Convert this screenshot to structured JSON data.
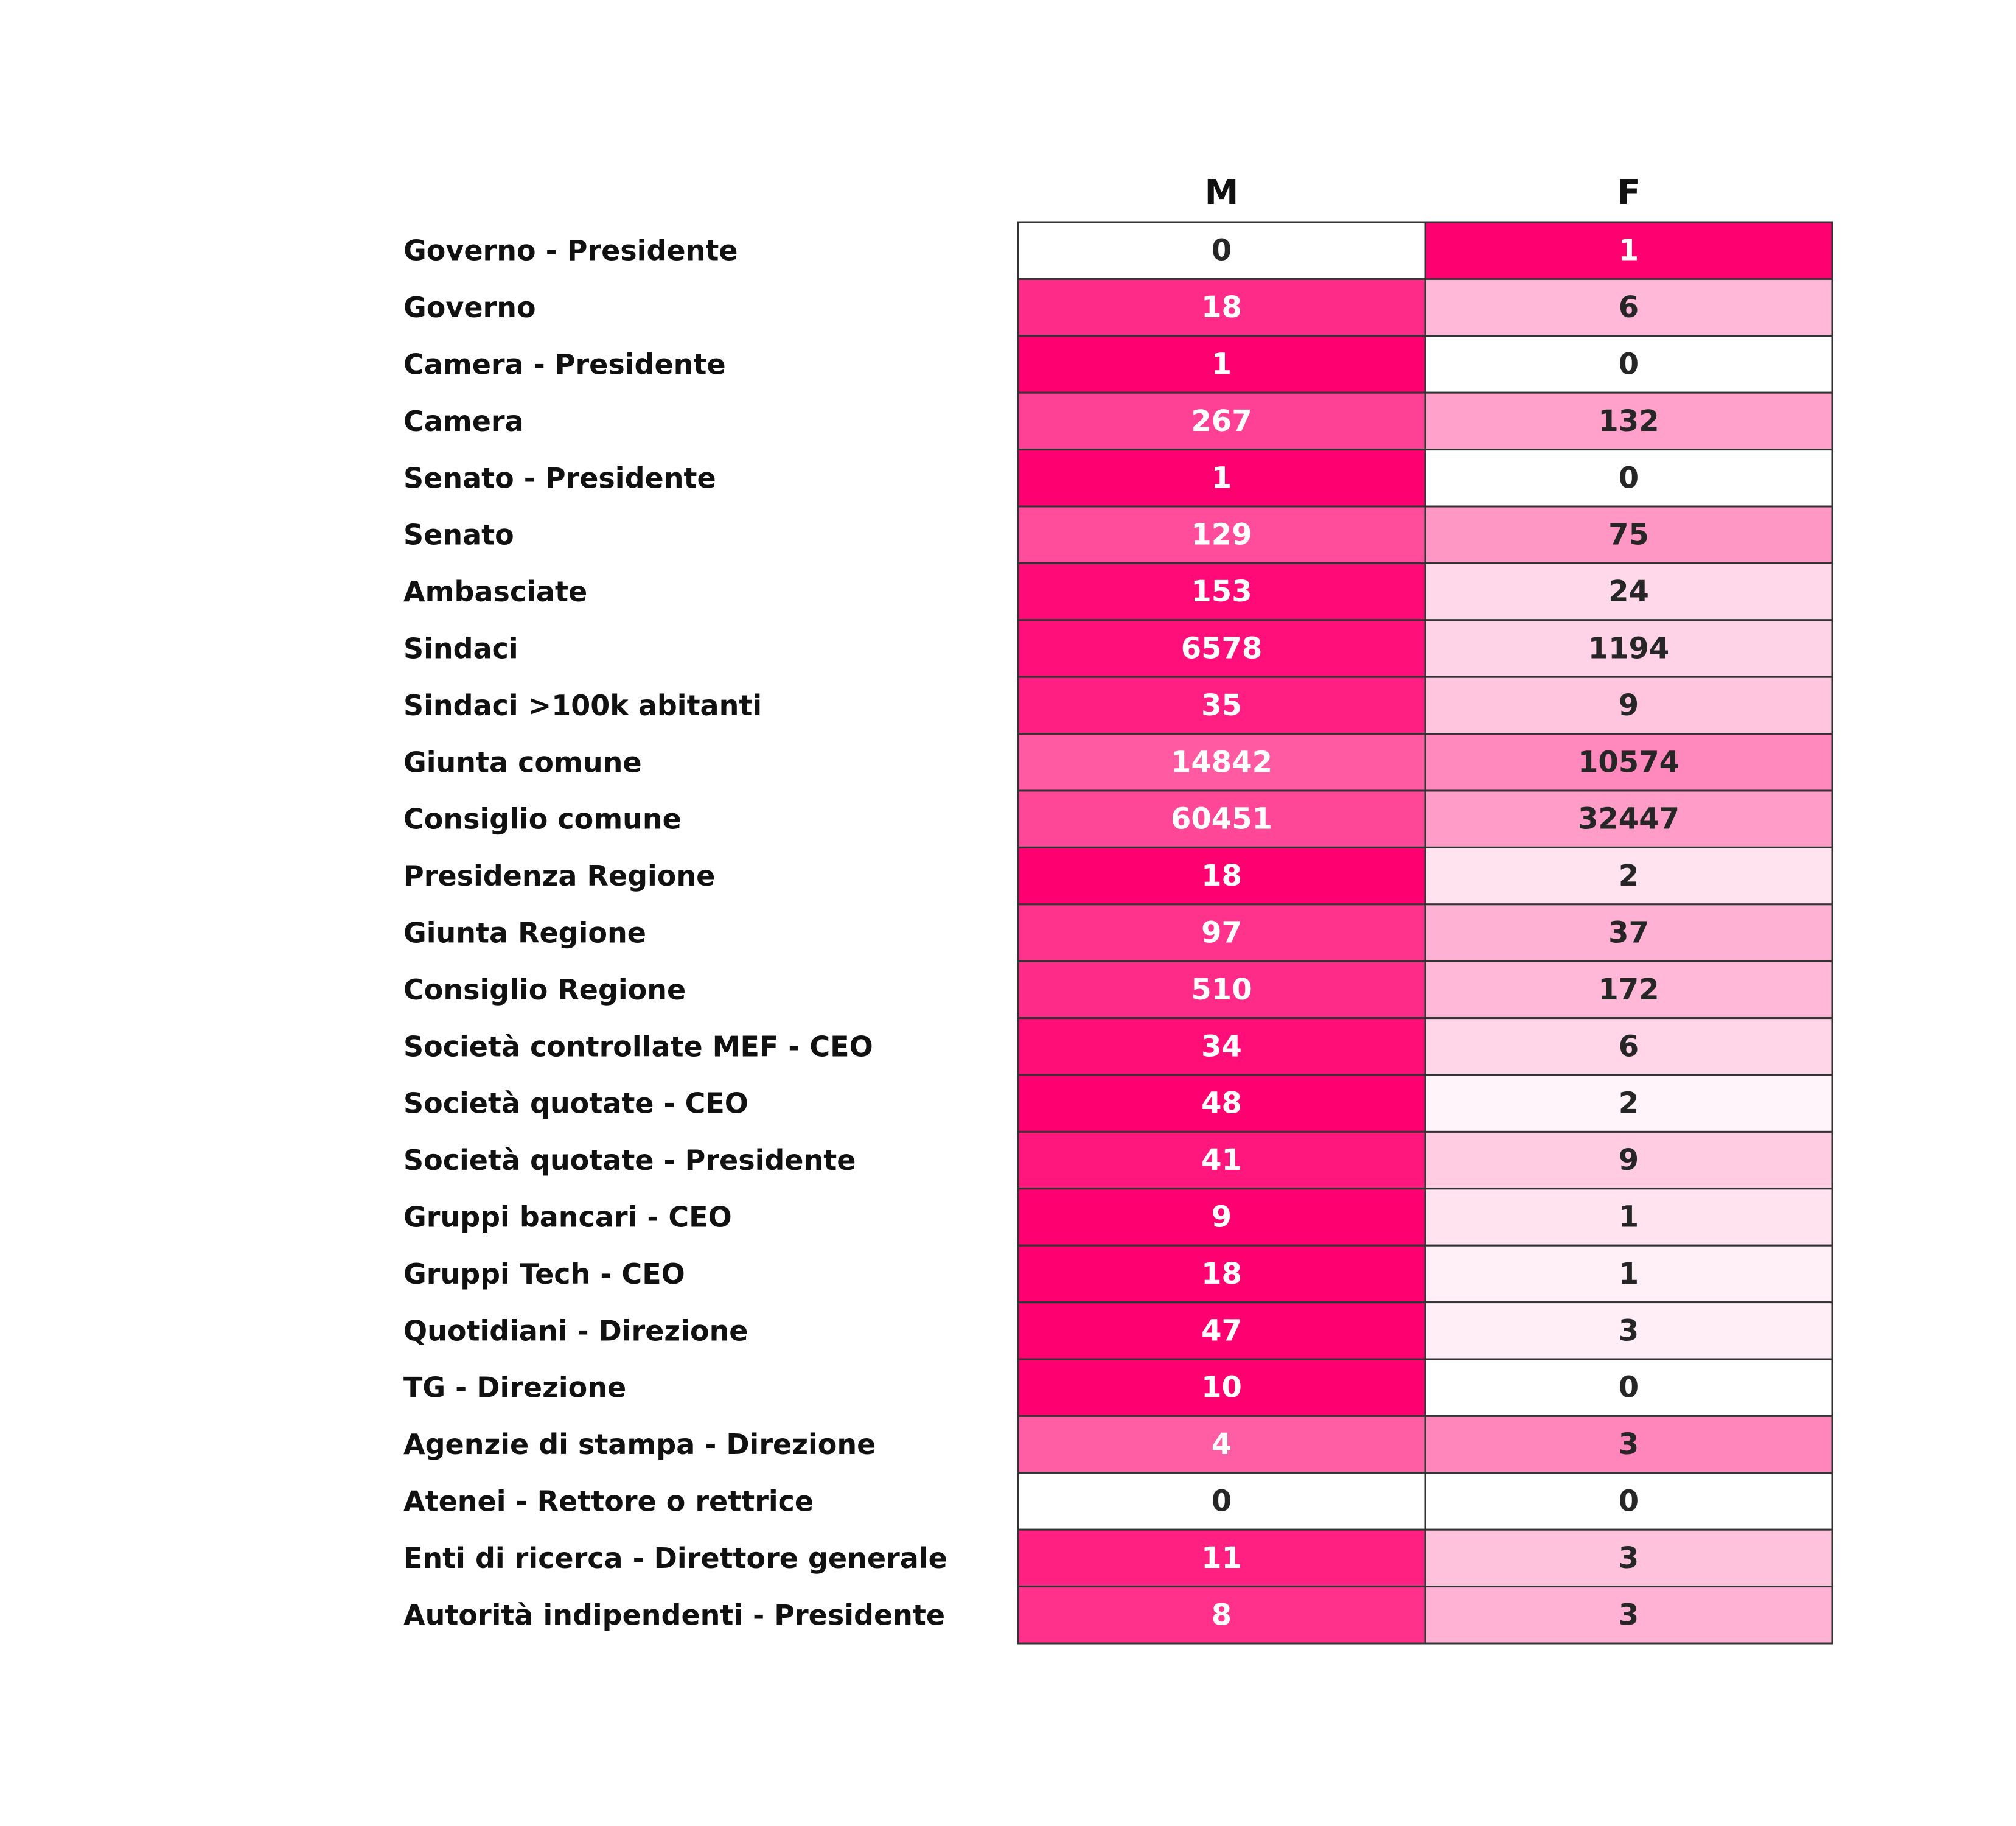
{
  "chart_data": {
    "type": "heatmap",
    "columns": [
      "M",
      "F"
    ],
    "rows": [
      "Governo - Presidente",
      "Governo",
      "Camera - Presidente",
      "Camera",
      "Senato - Presidente",
      "Senato",
      "Ambasciate",
      "Sindaci",
      "Sindaci >100k abitanti",
      "Giunta comune",
      "Consiglio comune",
      "Presidenza Regione",
      "Giunta Regione",
      "Consiglio Regione",
      "Società controllate MEF - CEO",
      "Società quotate - CEO",
      "Società quotate - Presidente",
      "Gruppi bancari - CEO",
      "Gruppi Tech - CEO",
      "Quotidiani - Direzione",
      "TG - Direzione",
      "Agenzie di stampa - Direzione",
      "Atenei - Rettore o rettrice",
      "Enti di ricerca - Direttore generale",
      "Autorità indipendenti - Presidente"
    ],
    "values": [
      [
        0,
        1
      ],
      [
        18,
        6
      ],
      [
        1,
        0
      ],
      [
        267,
        132
      ],
      [
        1,
        0
      ],
      [
        129,
        75
      ],
      [
        153,
        24
      ],
      [
        6578,
        1194
      ],
      [
        35,
        9
      ],
      [
        14842,
        10574
      ],
      [
        60451,
        32447
      ],
      [
        18,
        2
      ],
      [
        97,
        37
      ],
      [
        510,
        172
      ],
      [
        34,
        6
      ],
      [
        48,
        2
      ],
      [
        41,
        9
      ],
      [
        9,
        1
      ],
      [
        18,
        1
      ],
      [
        47,
        3
      ],
      [
        10,
        0
      ],
      [
        4,
        3
      ],
      [
        0,
        0
      ],
      [
        11,
        3
      ],
      [
        8,
        3
      ]
    ],
    "color_scale": "row-normalized share, white to #ff0070",
    "colors": {
      "low": "#ffffff",
      "high": "#ff0070",
      "text_on_dark": "#ffffff",
      "text_on_light": "#262626",
      "cell_border": "#333333"
    }
  }
}
